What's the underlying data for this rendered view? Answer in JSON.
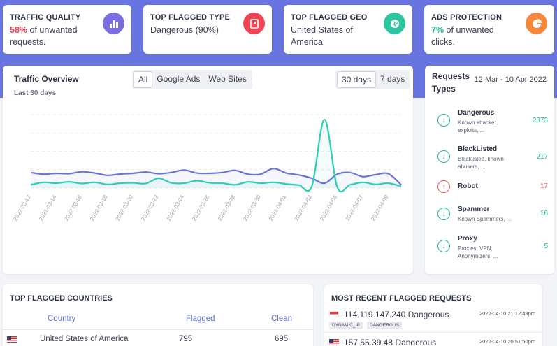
{
  "kpis": [
    {
      "title": "TRAFFIC QUALITY",
      "highlight": "58%",
      "text": " of unwanted requests.",
      "hl_color": "#e5404f",
      "icon": "bar-chart-icon",
      "icon_bg": "#7c6ee0"
    },
    {
      "title": "TOP FLAGGED TYPE",
      "highlight": "",
      "text": "Dangerous (90%)",
      "hl_color": "",
      "icon": "flag-document-icon",
      "icon_bg": "#ee4454"
    },
    {
      "title": "TOP FLAGGED GEO",
      "highlight": "",
      "text": "United States of America",
      "hl_color": "",
      "icon": "globe-icon",
      "icon_bg": "#2cc5a0"
    },
    {
      "title": "ADS PROTECTION",
      "highlight": "7%",
      "text": " of unwanted clicks.",
      "hl_color": "#1cb98f",
      "icon": "pie-chart-icon",
      "icon_bg": "#f5883a"
    }
  ],
  "overview": {
    "title": "Traffic Overview",
    "subtitle": "Last 30 days",
    "filters": [
      "All",
      "Google Ads",
      "Web Sites"
    ],
    "active_filter": "All",
    "ranges": [
      "30 days",
      "7 days"
    ],
    "active_range": "30 days"
  },
  "chart_data": {
    "type": "line",
    "x": [
      "2022-03-12",
      "2022-03-13",
      "2022-03-14",
      "2022-03-15",
      "2022-03-16",
      "2022-03-17",
      "2022-03-18",
      "2022-03-19",
      "2022-03-20",
      "2022-03-21",
      "2022-03-22",
      "2022-03-23",
      "2022-03-24",
      "2022-03-25",
      "2022-03-26",
      "2022-03-27",
      "2022-03-28",
      "2022-03-29",
      "2022-03-30",
      "2022-03-31",
      "2022-04-01",
      "2022-04-02",
      "2022-04-03",
      "2022-04-04",
      "2022-04-05",
      "2022-04-06",
      "2022-04-07",
      "2022-04-08",
      "2022-04-09",
      "2022-04-10"
    ],
    "x_tick_labels": [
      "2022-03-12",
      "2022-03-14",
      "2022-03-16",
      "2022-03-18",
      "2022-03-20",
      "2022-03-22",
      "2022-03-24",
      "2022-03-26",
      "2022-03-28",
      "2022-03-30",
      "2022-04-01",
      "2022-04-03",
      "2022-04-05",
      "2022-04-07",
      "2022-04-09"
    ],
    "series": [
      {
        "color": "#6a74d8",
        "values": [
          0.95,
          0.85,
          0.9,
          0.88,
          1.0,
          0.92,
          0.78,
          0.86,
          0.9,
          0.98,
          0.88,
          0.95,
          1.1,
          0.92,
          0.9,
          0.95,
          1.08,
          0.85,
          0.85,
          1.2,
          0.92,
          0.8,
          0.6,
          0.3,
          0.85,
          0.95,
          0.7,
          0.82,
          0.88,
          0.2
        ]
      },
      {
        "color": "#2dcfb2",
        "values": [
          0.2,
          0.35,
          0.3,
          0.38,
          0.28,
          0.35,
          0.22,
          0.3,
          0.32,
          0.28,
          0.6,
          0.32,
          0.3,
          0.45,
          0.32,
          0.3,
          0.2,
          0.38,
          0.3,
          0.35,
          0.25,
          0.18,
          0.1,
          4.2,
          0.05,
          0.2,
          0.35,
          0.22,
          0.3,
          0.1
        ]
      }
    ],
    "grid": true
  },
  "request_types": {
    "title": "Requests Types",
    "range": "12 Mar - 10 Apr 2022",
    "items": [
      {
        "name": "Dangerous",
        "desc": "Known attacker, exploits, ...",
        "count": "2373",
        "dir": "down"
      },
      {
        "name": "BlackListed",
        "desc": "Blacklisted, known abusers, ...",
        "count": "217",
        "dir": "down"
      },
      {
        "name": "Robot",
        "desc": "",
        "count": "17",
        "dir": "up"
      },
      {
        "name": "Spammer",
        "desc": "Known Spammers, ...",
        "count": "16",
        "dir": "down"
      },
      {
        "name": "Proxy",
        "desc": "Proxies, VPN, Anonymizers, ...",
        "count": "5",
        "dir": "down"
      }
    ]
  },
  "countries": {
    "title": "TOP FLAGGED COUNTRIES",
    "headers": {
      "country": "Country",
      "flagged": "Flagged",
      "clean": "Clean"
    },
    "rows": [
      {
        "country": "United States of America",
        "flagged": "795",
        "clean": "695"
      }
    ]
  },
  "recent": {
    "title": "MOST RECENT FLAGGED REQUESTS",
    "items": [
      {
        "ip": "114.119.147.240",
        "type": "Dangerous",
        "time": "2022-04-10 21:12:49pm",
        "tags": [
          "DYNAMIC_IP",
          "DANGEROUS"
        ]
      },
      {
        "ip": "157.55.39.48",
        "type": "Dangerous",
        "time": "2022-04-10 20:51:50pm",
        "tags": []
      }
    ]
  },
  "colors": {
    "band": "#6875e0",
    "up": "#ef5a5a",
    "down": "#1cb98f"
  }
}
